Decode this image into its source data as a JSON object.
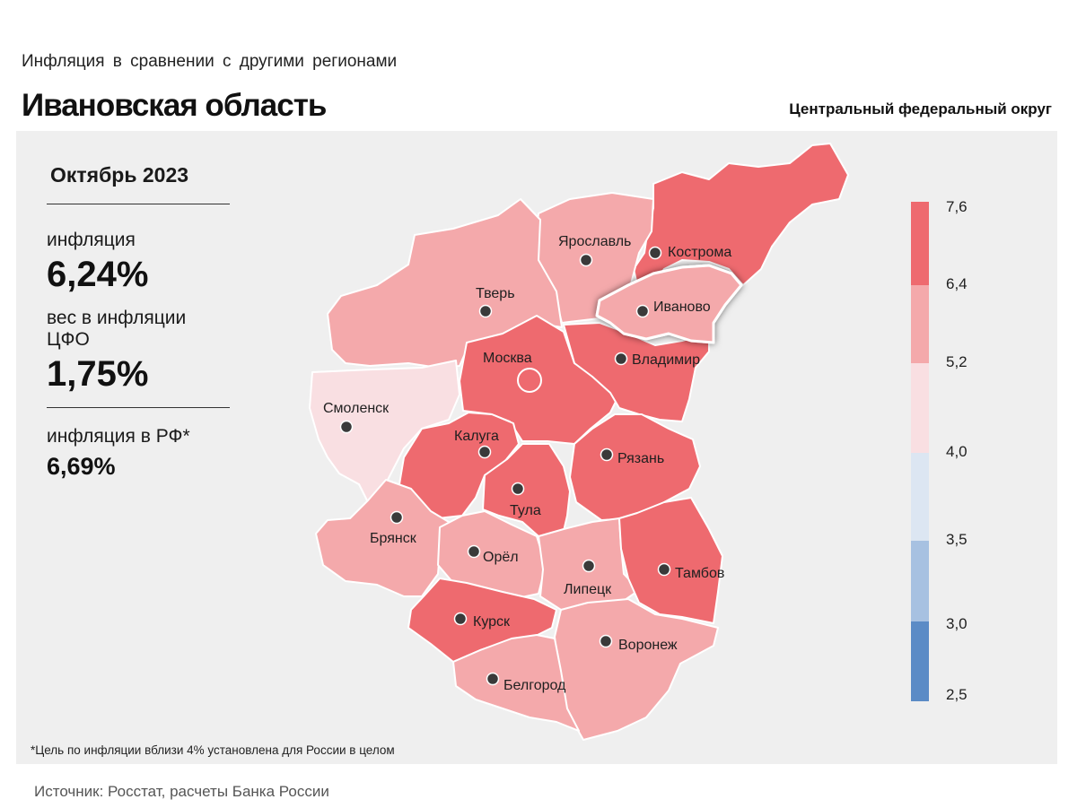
{
  "header": {
    "subtitle": "Инфляция  в сравнении  с другими  регионами",
    "title": "Ивановская область",
    "district": "Центральный федеральный округ"
  },
  "stats": {
    "period": "Октябрь 2023",
    "inflation_label": "инфляция",
    "inflation_value": "6,24%",
    "weight_label": "вес в инфляции  ЦФО",
    "weight_value": "1,75%",
    "rf_label": "инфляция  в РФ*",
    "rf_value": "6,69%"
  },
  "footnote": "*Цель по инфляции вблизи 4% установлена для России в целом",
  "source": "Источник: Росстат, расчеты Банка России",
  "colors": {
    "dark_red": "#ee6a6f",
    "pink": "#f4a9ab",
    "light_pink": "#f9dfe2",
    "light_blue": "#dce6f2",
    "mid_blue": "#a7c1e1",
    "dark_blue": "#5b8bc6",
    "background": "#efefef"
  },
  "legend": {
    "ticks": [
      "7,6",
      "6,4",
      "5,2",
      "4,0",
      "3,5",
      "3,0",
      "2,5"
    ]
  },
  "regions": [
    {
      "id": "kostroma",
      "name": "Кострома",
      "class": "dark_red"
    },
    {
      "id": "yaroslavl",
      "name": "Ярославль",
      "class": "pink"
    },
    {
      "id": "ivanovo",
      "name": "Иваново",
      "class": "pink",
      "highlight": true
    },
    {
      "id": "tver",
      "name": "Тверь",
      "class": "pink"
    },
    {
      "id": "moscow",
      "name": "Москва",
      "class": "dark_red"
    },
    {
      "id": "vladimir",
      "name": "Владимир",
      "class": "dark_red"
    },
    {
      "id": "smolensk",
      "name": "Смоленск",
      "class": "light_pink"
    },
    {
      "id": "kaluga",
      "name": "Калуга",
      "class": "dark_red"
    },
    {
      "id": "tula",
      "name": "Тула",
      "class": "dark_red"
    },
    {
      "id": "ryazan",
      "name": "Рязань",
      "class": "dark_red"
    },
    {
      "id": "bryansk",
      "name": "Брянск",
      "class": "pink"
    },
    {
      "id": "orel",
      "name": "Орёл",
      "class": "pink"
    },
    {
      "id": "lipetsk",
      "name": "Липецк",
      "class": "pink"
    },
    {
      "id": "tambov",
      "name": "Тамбов",
      "class": "dark_red"
    },
    {
      "id": "kursk",
      "name": "Курск",
      "class": "dark_red"
    },
    {
      "id": "voronezh",
      "name": "Воронеж",
      "class": "pink"
    },
    {
      "id": "belgorod",
      "name": "Белгород",
      "class": "pink"
    }
  ]
}
